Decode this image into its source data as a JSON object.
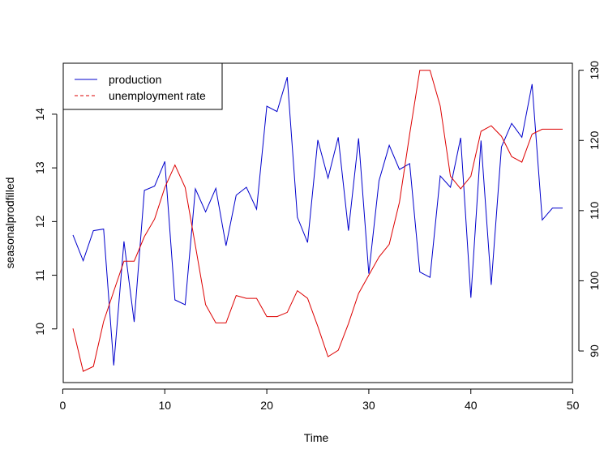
{
  "chart_data": {
    "type": "line",
    "xlabel": "Time",
    "ylabel": "seasonalprodfilled",
    "xlim": [
      1,
      49
    ],
    "x_ticks": [
      0,
      10,
      20,
      30,
      40,
      50
    ],
    "ylim_left": [
      9.0,
      14.95
    ],
    "y_ticks_left": [
      10,
      11,
      12,
      13,
      14
    ],
    "ylim_right": [
      85.5,
      131
    ],
    "y_ticks_right": [
      90,
      100,
      110,
      120,
      130
    ],
    "grid": false,
    "legend_position": "top-left",
    "colors": {
      "production": "#0000cc",
      "unemployment": "#dd0000"
    },
    "legend": [
      {
        "label": "production",
        "color": "#0000cc",
        "style": "solid"
      },
      {
        "label": "unemployment rate",
        "color": "#dd0000",
        "style": "dashed"
      }
    ],
    "series": [
      {
        "name": "production",
        "axis": "left",
        "x": [
          1,
          2,
          3,
          4,
          5,
          6,
          7,
          8,
          9,
          10,
          11,
          12,
          13,
          14,
          15,
          16,
          17,
          18,
          19,
          20,
          21,
          22,
          23,
          24,
          25,
          26,
          27,
          28,
          29,
          30,
          31,
          32,
          33,
          34,
          35,
          36,
          37,
          38,
          39,
          40,
          41,
          42,
          43,
          44,
          45,
          46,
          47,
          48,
          49
        ],
        "values": [
          11.75,
          11.27,
          11.83,
          11.86,
          9.32,
          11.63,
          10.13,
          12.58,
          12.66,
          13.12,
          10.54,
          10.45,
          12.61,
          12.18,
          12.62,
          11.55,
          12.49,
          12.64,
          12.23,
          14.15,
          14.05,
          14.69,
          12.08,
          11.61,
          13.52,
          12.81,
          13.57,
          11.83,
          13.55,
          11.03,
          12.76,
          13.42,
          12.97,
          13.08,
          11.06,
          10.96,
          12.85,
          12.64,
          13.56,
          10.58,
          13.51,
          10.82,
          13.39,
          13.83,
          13.57,
          14.56,
          12.03,
          12.25,
          12.25
        ]
      },
      {
        "name": "unemployment rate",
        "axis": "right",
        "x": [
          1,
          2,
          3,
          4,
          5,
          6,
          7,
          8,
          9,
          10,
          11,
          12,
          13,
          14,
          15,
          16,
          17,
          18,
          19,
          20,
          21,
          22,
          23,
          24,
          25,
          26,
          27,
          28,
          29,
          30,
          31,
          32,
          33,
          34,
          35,
          36,
          37,
          38,
          39,
          40,
          41,
          42,
          43,
          44,
          45,
          46,
          47,
          48,
          49
        ],
        "values": [
          93.2,
          87.1,
          87.8,
          94.2,
          98.5,
          102.8,
          102.8,
          106.3,
          108.8,
          113.3,
          116.5,
          113.3,
          105.0,
          96.6,
          94.0,
          94.0,
          97.9,
          97.5,
          97.5,
          94.9,
          94.9,
          95.5,
          98.6,
          97.5,
          93.5,
          89.2,
          90.1,
          93.9,
          98.2,
          100.8,
          103.4,
          105.2,
          111.2,
          120.9,
          130.0,
          130.0,
          124.9,
          114.9,
          113.1,
          114.9,
          121.3,
          122.1,
          120.6,
          117.7,
          116.9,
          120.9,
          121.6,
          121.6,
          121.6
        ]
      }
    ]
  }
}
